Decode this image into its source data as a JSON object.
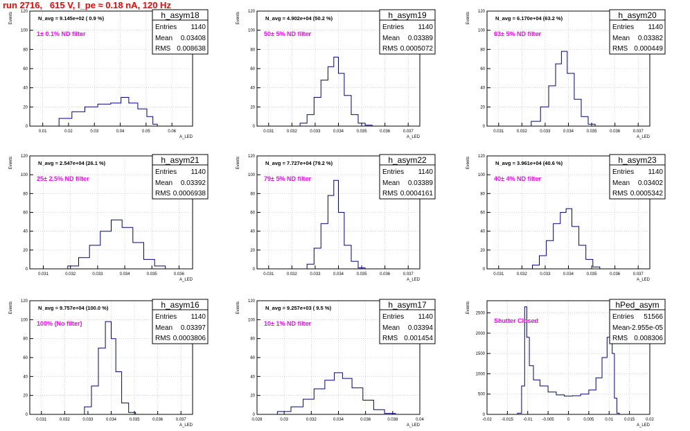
{
  "page_title": "run 2716,   615 V, I_pe ≈ 0.18 nA, 120 Hz",
  "colors": {
    "title": "#ff0000",
    "histogram_line": "#000080",
    "filter_label": "#ff00ff",
    "grid": "#bbbbbb"
  },
  "chart_data": [
    {
      "type": "histogram",
      "name": "h_asym18",
      "navg_label": "N_avg = 9.145e+02 ( 0.9 %)",
      "filter_label": "1± 0.1% ND filter",
      "stats": {
        "entries": "1140",
        "mean": "0.03408",
        "rms": "0.008638"
      },
      "ylabel": "Events",
      "xlabel": "A_LED",
      "xlim": [
        0.005,
        0.068
      ],
      "ylim": [
        0,
        120
      ],
      "xticks": [
        "0.01",
        "0.02",
        "0.03",
        "0.04",
        "0.05",
        "0.06"
      ],
      "yticks": [
        "0",
        "20",
        "40",
        "60",
        "80",
        "100",
        "120"
      ],
      "x": [
        0.0188,
        0.0238,
        0.0288,
        0.0338,
        0.0388,
        0.0418,
        0.0448,
        0.0488,
        0.0518,
        0.0535
      ],
      "counts": [
        8,
        15,
        20,
        23,
        24,
        30,
        24,
        18,
        10,
        2
      ]
    },
    {
      "type": "histogram",
      "name": "h_asym19",
      "navg_label": "N_avg = 4.902e+04 (50.2 %)",
      "filter_label": "50± 5% ND filter",
      "stats": {
        "entries": "1140",
        "mean": "0.03389",
        "rms": "0.0005072"
      },
      "ylabel": "Events",
      "xlabel": "A_LED",
      "xlim": [
        0.0305,
        0.0375
      ],
      "ylim": [
        0,
        120
      ],
      "xticks": [
        "0.031",
        "0.032",
        "0.033",
        "0.034",
        "0.035",
        "0.036",
        "0.037"
      ],
      "yticks": [
        "0",
        "20",
        "40",
        "60",
        "80",
        "100",
        "120"
      ],
      "x": [
        0.0325,
        0.0328,
        0.0331,
        0.0334,
        0.0337,
        0.0339,
        0.0341,
        0.0344,
        0.0347,
        0.035,
        0.0353
      ],
      "counts": [
        3,
        12,
        30,
        48,
        62,
        72,
        55,
        32,
        12,
        3,
        1
      ]
    },
    {
      "type": "histogram",
      "name": "h_asym20",
      "navg_label": "N_avg = 6.170e+04 (63.2 %)",
      "filter_label": "63± 5% ND filter",
      "stats": {
        "entries": "1140",
        "mean": "0.03382",
        "rms": "0.000449"
      },
      "ylabel": "Events",
      "xlabel": "A_LED",
      "xlim": [
        0.0305,
        0.0375
      ],
      "ylim": [
        0,
        120
      ],
      "xticks": [
        "0.031",
        "0.032",
        "0.033",
        "0.034",
        "0.035",
        "0.036",
        "0.037"
      ],
      "yticks": [
        "0",
        "20",
        "40",
        "60",
        "80",
        "100",
        "120"
      ],
      "x": [
        0.0326,
        0.033,
        0.0333,
        0.0336,
        0.0338,
        0.0341,
        0.0344,
        0.0347,
        0.035
      ],
      "counts": [
        5,
        20,
        42,
        65,
        78,
        55,
        28,
        10,
        2
      ]
    },
    {
      "type": "histogram",
      "name": "h_asym21",
      "navg_label": "N_avg = 2.547e+04 (26.1 %)",
      "filter_label": "25± 2.5% ND filter",
      "stats": {
        "entries": "1140",
        "mean": "0.03392",
        "rms": "0.0006938"
      },
      "ylabel": "Events",
      "xlabel": "A_LED",
      "xlim": [
        0.0305,
        0.0365
      ],
      "ylim": [
        0,
        120
      ],
      "xticks": [
        "0.031",
        "0.032",
        "0.033",
        "0.034",
        "0.035",
        "0.036"
      ],
      "yticks": [
        "0",
        "20",
        "40",
        "60",
        "80",
        "100",
        "120"
      ],
      "x": [
        0.0321,
        0.0325,
        0.0329,
        0.0333,
        0.0337,
        0.0341,
        0.0345,
        0.0349,
        0.0353
      ],
      "counts": [
        3,
        12,
        25,
        40,
        52,
        44,
        28,
        10,
        3
      ]
    },
    {
      "type": "histogram",
      "name": "h_asym22",
      "navg_label": "N_avg = 7.727e+04 (79.2 %)",
      "filter_label": "79± 5% ND filter",
      "stats": {
        "entries": "1140",
        "mean": "0.03389",
        "rms": "0.0004161"
      },
      "ylabel": "Events",
      "xlabel": "A_LED",
      "xlim": [
        0.0305,
        0.0375
      ],
      "ylim": [
        0,
        120
      ],
      "xticks": [
        "0.031",
        "0.032",
        "0.033",
        "0.034",
        "0.035",
        "0.036",
        "0.037"
      ],
      "yticks": [
        "0",
        "20",
        "40",
        "60",
        "80",
        "100",
        "120"
      ],
      "x": [
        0.0328,
        0.0331,
        0.0334,
        0.0337,
        0.0339,
        0.0341,
        0.0344,
        0.0347,
        0.035
      ],
      "counts": [
        5,
        22,
        48,
        78,
        94,
        60,
        25,
        8,
        1
      ]
    },
    {
      "type": "histogram",
      "name": "h_asym23",
      "navg_label": "N_avg = 3.961e+04 (40.6 %)",
      "filter_label": "40± 4% ND filter",
      "stats": {
        "entries": "1140",
        "mean": "0.03402",
        "rms": "0.0005342"
      },
      "ylabel": "Events",
      "xlabel": "A_LED",
      "xlim": [
        0.0305,
        0.0375
      ],
      "ylim": [
        0,
        120
      ],
      "xticks": [
        "0.031",
        "0.032",
        "0.033",
        "0.034",
        "0.035",
        "0.036",
        "0.037"
      ],
      "yticks": [
        "0",
        "20",
        "40",
        "60",
        "80",
        "100",
        "120"
      ],
      "x": [
        0.0326,
        0.0329,
        0.0332,
        0.0335,
        0.0338,
        0.034,
        0.0343,
        0.0346,
        0.0349,
        0.0352
      ],
      "counts": [
        4,
        14,
        30,
        48,
        60,
        64,
        45,
        25,
        10,
        2
      ]
    },
    {
      "type": "histogram",
      "name": "h_asym16",
      "navg_label": "N_avg = 9.757e+04 (100.0 %)",
      "filter_label": "100% (No filter)",
      "stats": {
        "entries": "1140",
        "mean": "0.03397",
        "rms": "0.0003806"
      },
      "ylabel": "Events",
      "xlabel": "A_LED",
      "xlim": [
        0.0305,
        0.0375
      ],
      "ylim": [
        0,
        120
      ],
      "xticks": [
        "0.031",
        "0.032",
        "0.033",
        "0.034",
        "0.035",
        "0.036",
        "0.037"
      ],
      "yticks": [
        "0",
        "20",
        "40",
        "60",
        "80",
        "100",
        "120"
      ],
      "x": [
        0.033,
        0.0333,
        0.0336,
        0.0339,
        0.0341,
        0.0343,
        0.0346,
        0.0349
      ],
      "counts": [
        8,
        30,
        70,
        98,
        80,
        45,
        12,
        2
      ]
    },
    {
      "type": "histogram",
      "name": "h_asym17",
      "navg_label": "N_avg = 9.257e+03 ( 9.5 %)",
      "filter_label": "10± 1% ND filter",
      "stats": {
        "entries": "1140",
        "mean": "0.03394",
        "rms": "0.001454"
      },
      "ylabel": "Events",
      "xlabel": "A_LED",
      "xlim": [
        0.028,
        0.04
      ],
      "ylim": [
        0,
        120
      ],
      "xticks": [
        "0.028",
        "0.03",
        "0.032",
        "0.034",
        "0.036",
        "0.038",
        "0.04"
      ],
      "yticks": [
        "0",
        "20",
        "40",
        "60",
        "80",
        "100",
        "120"
      ],
      "x": [
        0.03,
        0.031,
        0.0318,
        0.0326,
        0.0334,
        0.034,
        0.0346,
        0.0354,
        0.0362,
        0.037,
        0.0378
      ],
      "counts": [
        3,
        8,
        16,
        27,
        36,
        44,
        38,
        28,
        15,
        5,
        1
      ]
    },
    {
      "type": "histogram",
      "name": "hPed_asym",
      "navg_label": "",
      "filter_label": "Shutter Closed",
      "stats": {
        "entries": "51566",
        "mean": "-2.955e-05",
        "rms": "0.008306"
      },
      "ylabel": "Events",
      "xlabel": "A_LED",
      "xlim": [
        -0.02,
        0.02
      ],
      "ylim": [
        0,
        2800
      ],
      "xticks": [
        "-0.02",
        "-0.015",
        "-0.01",
        "-0.005",
        "0",
        "0.005",
        "0.01",
        "0.015",
        "0.02"
      ],
      "yticks": [
        "0",
        "500",
        "1000",
        "1500",
        "2000",
        "2500"
      ],
      "x": [
        -0.012,
        -0.011,
        -0.0105,
        -0.01,
        -0.0092,
        -0.008,
        -0.006,
        -0.004,
        -0.002,
        0.0,
        0.002,
        0.004,
        0.006,
        0.0075,
        0.009,
        0.01,
        0.0105,
        0.011,
        0.0116,
        0.0122
      ],
      "counts": [
        30,
        700,
        2650,
        1900,
        1200,
        850,
        700,
        550,
        480,
        450,
        460,
        500,
        600,
        900,
        1400,
        1900,
        2300,
        1500,
        400,
        30
      ]
    }
  ]
}
